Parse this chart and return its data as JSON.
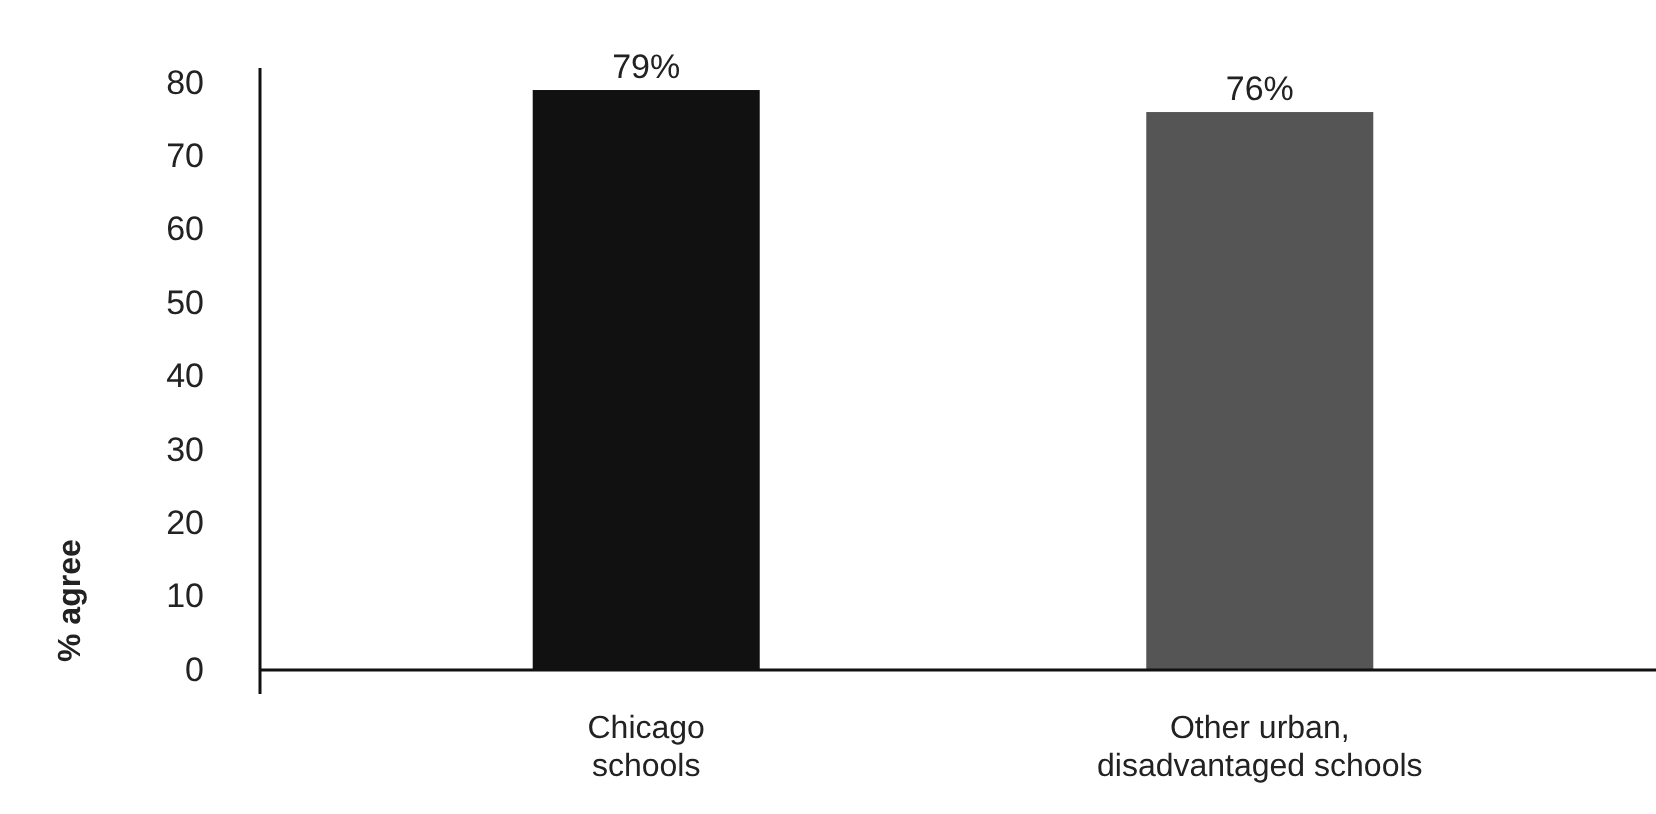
{
  "chart_data": {
    "type": "bar",
    "ylabel": "% agree",
    "categories": [
      "Chicago schools",
      "Other urban, disadvantaged schools"
    ],
    "values": [
      79,
      76
    ],
    "colors": [
      "#111111",
      "#555555"
    ],
    "value_labels": [
      "79%",
      "76%"
    ],
    "ylim": [
      0,
      82
    ],
    "yticks": [
      0,
      10,
      20,
      30,
      40,
      50,
      60,
      70,
      80
    ],
    "grid": false
  }
}
